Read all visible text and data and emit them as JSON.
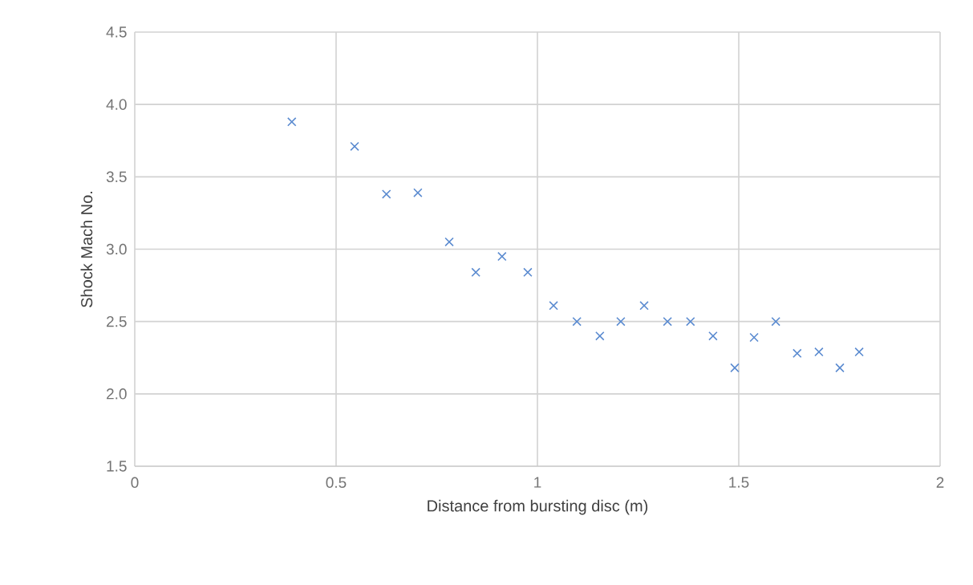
{
  "chart_data": {
    "type": "scatter",
    "xlabel": "Distance from bursting disc (m)",
    "ylabel": "Shock Mach No.",
    "x": [
      0.39,
      0.546,
      0.625,
      0.703,
      0.781,
      0.847,
      0.912,
      0.976,
      1.04,
      1.098,
      1.155,
      1.207,
      1.265,
      1.323,
      1.38,
      1.436,
      1.49,
      1.538,
      1.592,
      1.645,
      1.699,
      1.751,
      1.799
    ],
    "values": [
      3.88,
      3.71,
      3.38,
      3.39,
      3.05,
      2.84,
      2.95,
      2.84,
      2.61,
      2.5,
      2.4,
      2.5,
      2.61,
      2.5,
      2.5,
      2.4,
      2.18,
      2.39,
      2.5,
      2.28,
      2.29,
      2.18,
      2.29
    ],
    "color": "#5b8bd0",
    "marker": "cross",
    "xlim": [
      0,
      2
    ],
    "ylim": [
      1.5,
      4.5
    ],
    "xticks": [
      0,
      0.5,
      1,
      1.5,
      2
    ],
    "yticks": [
      1.5,
      {
        "value": 2,
        "label": "2.0"
      },
      {
        "value": 2.5,
        "label": "2.5"
      },
      {
        "value": 3,
        "label": "3.0"
      },
      {
        "value": 3.5,
        "label": "3.5"
      },
      {
        "value": 4,
        "label": "4.0"
      },
      4.5
    ],
    "grid": true
  }
}
